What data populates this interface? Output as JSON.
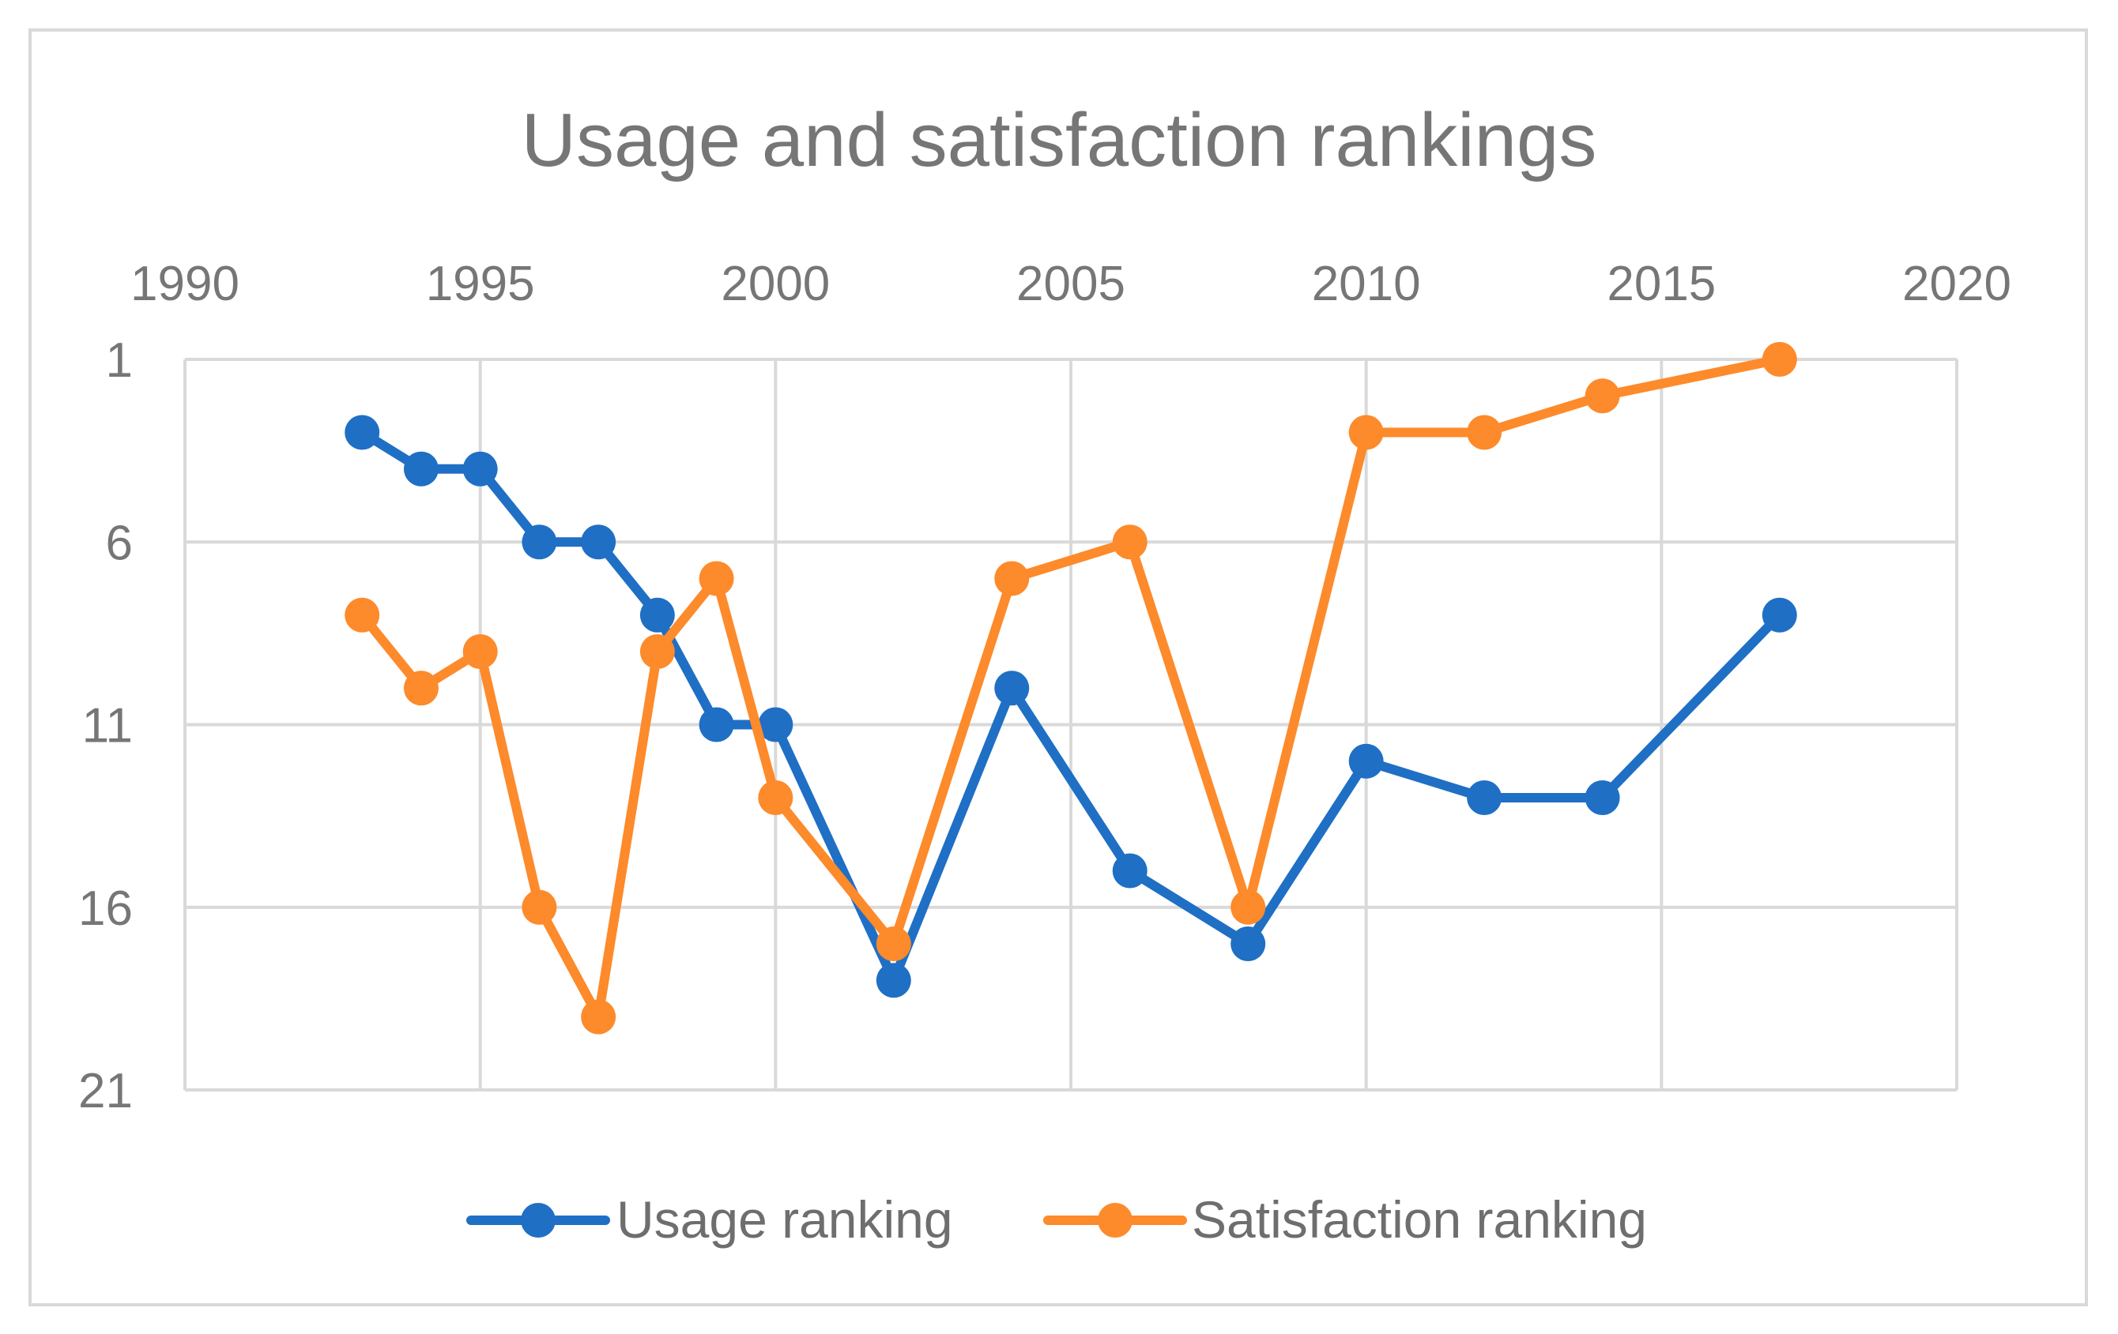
{
  "chart_data": {
    "type": "line",
    "title": "Usage and satisfaction rankings",
    "xlabel": "",
    "ylabel": "",
    "xlim": [
      1990,
      2020
    ],
    "ylim": [
      1,
      21
    ],
    "y_inverted": true,
    "x_axis_position": "top",
    "x_ticks": [
      1990,
      1995,
      2000,
      2005,
      2010,
      2015,
      2020
    ],
    "x_tick_labels": [
      "1990",
      "1995",
      "2000",
      "2005",
      "2010",
      "2015",
      "2020"
    ],
    "y_ticks": [
      1,
      6,
      11,
      16,
      21
    ],
    "y_tick_labels": [
      "1",
      "6",
      "11",
      "16",
      "21"
    ],
    "grid": true,
    "legend_position": "bottom",
    "series": [
      {
        "name": "Usage ranking",
        "color": "#1f6fc5",
        "x": [
          1993,
          1994,
          1995,
          1996,
          1997,
          1998,
          1999,
          2000,
          2002,
          2004,
          2006,
          2008,
          2010,
          2012,
          2014,
          2017
        ],
        "values": [
          3,
          4,
          4,
          6,
          6,
          8,
          11,
          11,
          18,
          10,
          15,
          17,
          12,
          13,
          13,
          8
        ]
      },
      {
        "name": "Satisfaction ranking",
        "color": "#fd8a2b",
        "x": [
          1993,
          1994,
          1995,
          1996,
          1997,
          1998,
          1999,
          2000,
          2002,
          2004,
          2006,
          2008,
          2010,
          2012,
          2014,
          2017
        ],
        "values": [
          8,
          10,
          9,
          16,
          19,
          9,
          7,
          13,
          17,
          7,
          6,
          16,
          3,
          3,
          2,
          1
        ]
      }
    ]
  }
}
